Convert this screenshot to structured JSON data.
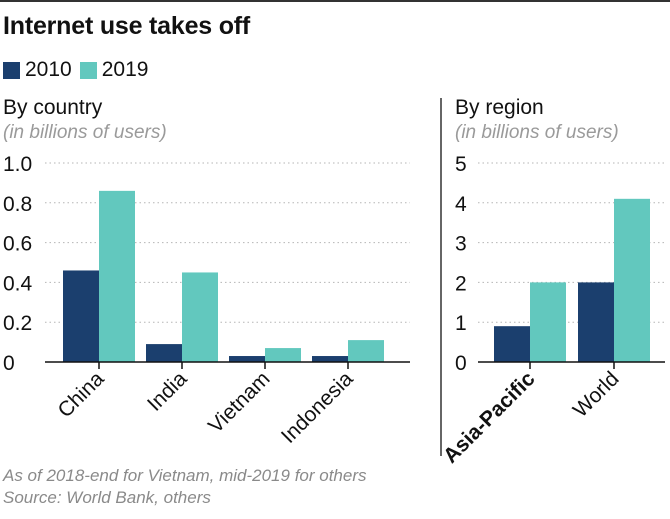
{
  "title": "Internet use takes off",
  "legend": [
    {
      "label": "2010",
      "color": "#1b3f6e"
    },
    {
      "label": "2019",
      "color": "#62c8be"
    }
  ],
  "footnotes": [
    "As of 2018-end for Vietnam, mid-2019 for others",
    "Source: World Bank, others"
  ],
  "chart_data": [
    {
      "type": "bar",
      "title": "By country",
      "subtitle": "(in billions of users)",
      "categories": [
        "China",
        "India",
        "Vietnam",
        "Indonesia"
      ],
      "series": [
        {
          "name": "2010",
          "values": [
            0.46,
            0.09,
            0.03,
            0.03
          ]
        },
        {
          "name": "2019",
          "values": [
            0.86,
            0.45,
            0.07,
            0.11
          ]
        }
      ],
      "ylim": [
        0,
        1.0
      ],
      "yticks": [
        "0",
        "0.2",
        "0.4",
        "0.6",
        "0.8",
        "1.0"
      ],
      "grid": true
    },
    {
      "type": "bar",
      "title": "By region",
      "subtitle": "(in billions of users)",
      "categories": [
        "Asia-Pacific",
        "World"
      ],
      "highlight_category": "Asia-Pacific",
      "series": [
        {
          "name": "2010",
          "values": [
            0.9,
            2.0
          ]
        },
        {
          "name": "2019",
          "values": [
            2.0,
            4.1
          ]
        }
      ],
      "ylim": [
        0,
        5
      ],
      "yticks": [
        "0",
        "1",
        "2",
        "3",
        "4",
        "5"
      ],
      "grid": true
    }
  ]
}
